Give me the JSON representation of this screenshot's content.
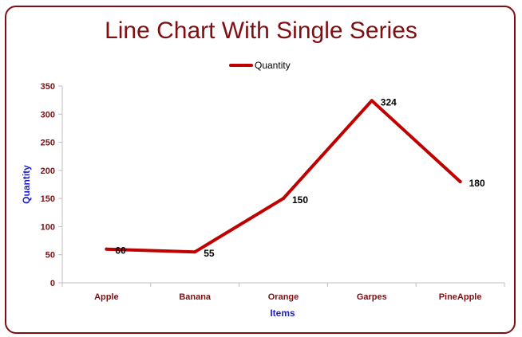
{
  "chart_data": {
    "type": "line",
    "title": "Line Chart With Single Series",
    "xlabel": "Items",
    "ylabel": "Quantity",
    "categories": [
      "Apple",
      "Banana",
      "Orange",
      "Garpes",
      "PineApple"
    ],
    "series": [
      {
        "name": "Quantity",
        "values": [
          60,
          55,
          150,
          324,
          180
        ],
        "color": "#c00000"
      }
    ],
    "ylim": [
      0,
      350
    ],
    "yticks": [
      0,
      50,
      100,
      150,
      200,
      250,
      300,
      350
    ],
    "grid": false,
    "legend_position": "top",
    "show_data_labels": true
  },
  "colors": {
    "border": "#7f0f12",
    "title": "#7f0f12",
    "tick_labels": "#7f0f12",
    "axis_titles": "#1f1fd0",
    "line": "#c00000"
  }
}
